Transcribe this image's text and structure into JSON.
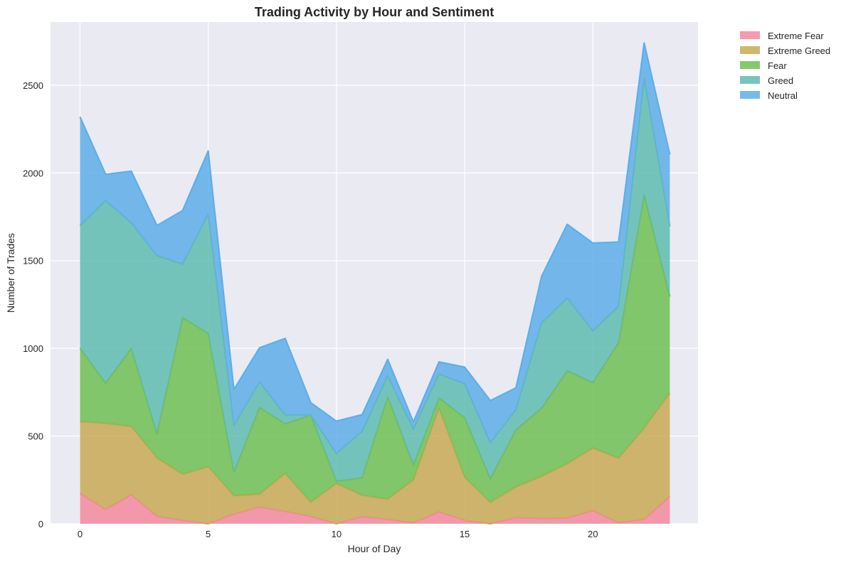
{
  "chart_data": {
    "type": "area",
    "stacked": true,
    "title": "Trading Activity by Hour and Sentiment",
    "xlabel": "Hour of Day",
    "ylabel": "Number of Trades",
    "xlim": [
      -1.15,
      24.1
    ],
    "ylim": [
      0,
      2860
    ],
    "xticks": [
      0,
      5,
      10,
      15,
      20
    ],
    "yticks": [
      0,
      500,
      1000,
      1500,
      2000,
      2500
    ],
    "grid": true,
    "legend_position": "outside-top-right",
    "x": [
      0,
      1,
      2,
      3,
      4,
      5,
      6,
      7,
      8,
      9,
      10,
      11,
      12,
      13,
      14,
      15,
      16,
      17,
      18,
      19,
      20,
      21,
      22,
      23
    ],
    "series": [
      {
        "name": "Extreme Fear",
        "color": "#f4899f",
        "values": [
          172,
          82,
          165,
          42,
          20,
          0,
          55,
          95,
          70,
          42,
          0,
          40,
          25,
          5,
          68,
          20,
          0,
          35,
          30,
          32,
          75,
          5,
          25,
          155
        ]
      },
      {
        "name": "Extreme Greed",
        "color": "#c9a955",
        "values": [
          410,
          490,
          390,
          333,
          262,
          325,
          105,
          73,
          217,
          80,
          230,
          122,
          115,
          245,
          590,
          245,
          122,
          175,
          240,
          310,
          357,
          368,
          520,
          590
        ]
      },
      {
        "name": "Fear",
        "color": "#6fbf54",
        "values": [
          420,
          230,
          445,
          138,
          893,
          760,
          135,
          495,
          283,
          498,
          13,
          100,
          585,
          85,
          60,
          340,
          135,
          325,
          390,
          530,
          373,
          660,
          1330,
          550
        ]
      },
      {
        "name": "Greed",
        "color": "#5fbcb2",
        "values": [
          698,
          1040,
          715,
          1015,
          305,
          680,
          265,
          145,
          50,
          0,
          157,
          265,
          117,
          205,
          135,
          193,
          205,
          115,
          485,
          415,
          295,
          205,
          665,
          400
        ]
      },
      {
        "name": "Neutral",
        "color": "#5eaee9",
        "values": [
          620,
          150,
          295,
          172,
          305,
          360,
          205,
          195,
          437,
          70,
          185,
          95,
          95,
          40,
          70,
          95,
          240,
          125,
          265,
          420,
          500,
          368,
          200,
          410
        ]
      }
    ]
  }
}
